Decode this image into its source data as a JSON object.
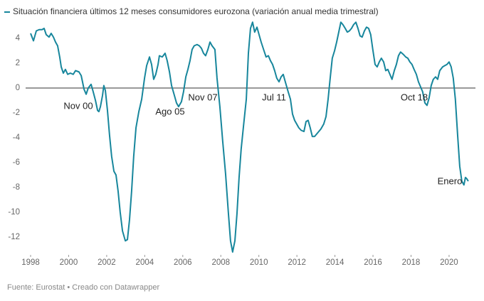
{
  "chart_data": {
    "type": "line",
    "title": "Situación financiera últimos 12 meses consumidores eurozona (variación anual media trimestral)",
    "source": "Fuente: Eurostat • Creado con Datawrapper",
    "annotations": [
      "Nov 00",
      "Ago 05",
      "Nov 07",
      "Jul 11",
      "Oct 18",
      "Enero"
    ],
    "xlim": [
      1998,
      2021.2
    ],
    "xticks": [
      1998,
      2000,
      2002,
      2004,
      2006,
      2008,
      2010,
      2012,
      2014,
      2016,
      2018,
      2020
    ],
    "ylim": [
      -13.3,
      5.4
    ],
    "yticks": [
      4,
      2,
      0,
      -2,
      -4,
      -6,
      -8,
      -10,
      -12
    ],
    "series": [
      {
        "name": "Situación financiera últimos 12 meses consumidores eurozona (variación anual media trimestral)",
        "color": "#17869c",
        "x": [
          1998.0,
          1998.15,
          1998.3,
          1998.45,
          1998.6,
          1998.71,
          1998.82,
          1998.97,
          1999.08,
          1999.2,
          1999.31,
          1999.42,
          1999.53,
          1999.61,
          1999.72,
          1999.83,
          1999.95,
          2000.09,
          2000.24,
          2000.36,
          2000.54,
          2000.66,
          2000.81,
          2000.92,
          2001.03,
          2001.18,
          2001.29,
          2001.41,
          2001.52,
          2001.59,
          2001.67,
          2001.78,
          2001.85,
          2001.93,
          2002.04,
          2002.15,
          2002.26,
          2002.38,
          2002.49,
          2002.6,
          2002.71,
          2002.83,
          2002.98,
          2003.09,
          2003.2,
          2003.31,
          2003.42,
          2003.54,
          2003.69,
          2003.84,
          2003.99,
          2004.1,
          2004.25,
          2004.36,
          2004.47,
          2004.58,
          2004.7,
          2004.77,
          2004.92,
          2005.07,
          2005.18,
          2005.3,
          2005.41,
          2005.56,
          2005.67,
          2005.78,
          2005.93,
          2006.04,
          2006.16,
          2006.27,
          2006.38,
          2006.49,
          2006.6,
          2006.75,
          2006.87,
          2006.98,
          2007.09,
          2007.2,
          2007.32,
          2007.43,
          2007.54,
          2007.69,
          2007.8,
          2007.95,
          2008.1,
          2008.25,
          2008.4,
          2008.51,
          2008.62,
          2008.74,
          2008.85,
          2008.96,
          2009.07,
          2009.19,
          2009.34,
          2009.45,
          2009.56,
          2009.67,
          2009.78,
          2009.9,
          2010.01,
          2010.12,
          2010.27,
          2010.38,
          2010.5,
          2010.61,
          2010.72,
          2010.83,
          2010.94,
          2011.06,
          2011.17,
          2011.28,
          2011.39,
          2011.54,
          2011.66,
          2011.77,
          2011.88,
          2011.99,
          2012.1,
          2012.22,
          2012.37,
          2012.48,
          2012.59,
          2012.7,
          2012.81,
          2012.93,
          2013.04,
          2013.15,
          2013.26,
          2013.41,
          2013.53,
          2013.64,
          2013.75,
          2013.86,
          2013.98,
          2014.09,
          2014.2,
          2014.31,
          2014.42,
          2014.54,
          2014.65,
          2014.76,
          2014.87,
          2014.98,
          2015.1,
          2015.21,
          2015.32,
          2015.43,
          2015.55,
          2015.66,
          2015.77,
          2015.88,
          2015.99,
          2016.11,
          2016.22,
          2016.33,
          2016.44,
          2016.56,
          2016.67,
          2016.78,
          2016.89,
          2017.0,
          2017.12,
          2017.23,
          2017.34,
          2017.45,
          2017.6,
          2017.72,
          2017.83,
          2017.94,
          2018.05,
          2018.16,
          2018.28,
          2018.39,
          2018.5,
          2018.61,
          2018.73,
          2018.84,
          2018.95,
          2019.06,
          2019.17,
          2019.29,
          2019.4,
          2019.51,
          2019.66,
          2019.77,
          2019.89,
          2020.0,
          2020.11,
          2020.22,
          2020.33,
          2020.45,
          2020.56,
          2020.67,
          2020.78,
          2020.86,
          2020.93,
          2021.01
        ],
        "values": [
          4.4,
          3.8,
          4.6,
          4.7,
          4.7,
          4.8,
          4.3,
          4.1,
          4.4,
          4.1,
          3.7,
          3.4,
          2.5,
          1.7,
          1.2,
          1.5,
          1.1,
          1.2,
          1.1,
          1.4,
          1.3,
          1.0,
          -0.1,
          -0.5,
          0,
          0.3,
          -0.3,
          -1.0,
          -1.8,
          -1.9,
          -1.5,
          -0.6,
          0.2,
          -0.2,
          -1.8,
          -3.8,
          -5.5,
          -6.7,
          -7.0,
          -8.3,
          -10.0,
          -11.5,
          -12.3,
          -12.2,
          -10.6,
          -8.3,
          -5.5,
          -3.2,
          -1.9,
          -0.9,
          0.8,
          1.8,
          2.5,
          1.9,
          0.7,
          1.1,
          1.9,
          2.6,
          2.5,
          2.8,
          2.2,
          1.3,
          0.2,
          -0.6,
          -1.2,
          -1.5,
          -1.1,
          -0.3,
          0.9,
          1.5,
          2.2,
          3.1,
          3.4,
          3.5,
          3.4,
          3.2,
          2.8,
          2.6,
          3.1,
          3.7,
          3.4,
          3.1,
          0.8,
          -1.5,
          -4.3,
          -6.9,
          -10.1,
          -12.3,
          -13.2,
          -12.3,
          -10.1,
          -7.2,
          -4.9,
          -3.1,
          -0.9,
          2.8,
          4.8,
          5.3,
          4.5,
          4.9,
          4.3,
          3.7,
          3.0,
          2.5,
          2.6,
          2.2,
          1.9,
          1.4,
          0.8,
          0.5,
          0.9,
          1.1,
          0.5,
          -0.3,
          -0.9,
          -2.1,
          -2.6,
          -2.9,
          -3.2,
          -3.4,
          -3.5,
          -2.7,
          -2.6,
          -3.2,
          -3.9,
          -3.9,
          -3.7,
          -3.5,
          -3.3,
          -2.9,
          -2.3,
          -0.9,
          0.8,
          2.4,
          3.0,
          3.7,
          4.5,
          5.3,
          5.1,
          4.8,
          4.5,
          4.6,
          4.8,
          5.1,
          5.3,
          4.8,
          4.2,
          4.1,
          4.6,
          4.9,
          4.8,
          4.3,
          3.1,
          1.9,
          1.7,
          2.1,
          2.4,
          2.1,
          1.4,
          1.5,
          1.1,
          0.7,
          1.4,
          1.9,
          2.6,
          2.9,
          2.7,
          2.5,
          2.4,
          2.1,
          1.9,
          1.5,
          1.1,
          0.5,
          0.1,
          -0.3,
          -1.2,
          -1.4,
          -0.8,
          0.2,
          0.7,
          0.9,
          0.7,
          1.4,
          1.7,
          1.8,
          1.9,
          2.1,
          1.7,
          0.8,
          -0.9,
          -3.8,
          -6.3,
          -7.5,
          -7.8,
          -7.2,
          -7.3,
          -7.5
        ]
      }
    ]
  }
}
